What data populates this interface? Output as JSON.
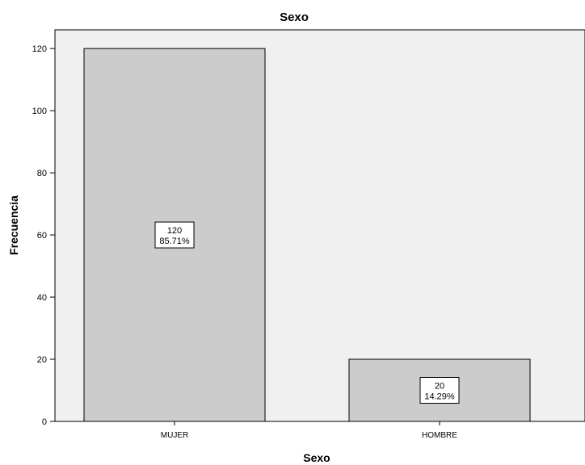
{
  "chart_data": {
    "type": "bar",
    "title": "Sexo",
    "xlabel": "Sexo",
    "ylabel": "Frecuencia",
    "categories": [
      "MUJER",
      "HOMBRE"
    ],
    "values": [
      120,
      20
    ],
    "data_labels": [
      {
        "count": "120",
        "percent": "85.71%"
      },
      {
        "count": "20",
        "percent": "14.29%"
      }
    ],
    "ylim": [
      0,
      126
    ],
    "yticks": [
      0,
      20,
      40,
      60,
      80,
      100,
      120
    ],
    "grid": false,
    "legend": "none",
    "colors": {
      "plot_background": "#f0f0f0",
      "bar_fill": "#cccccc",
      "bar_stroke": "#000000"
    }
  }
}
